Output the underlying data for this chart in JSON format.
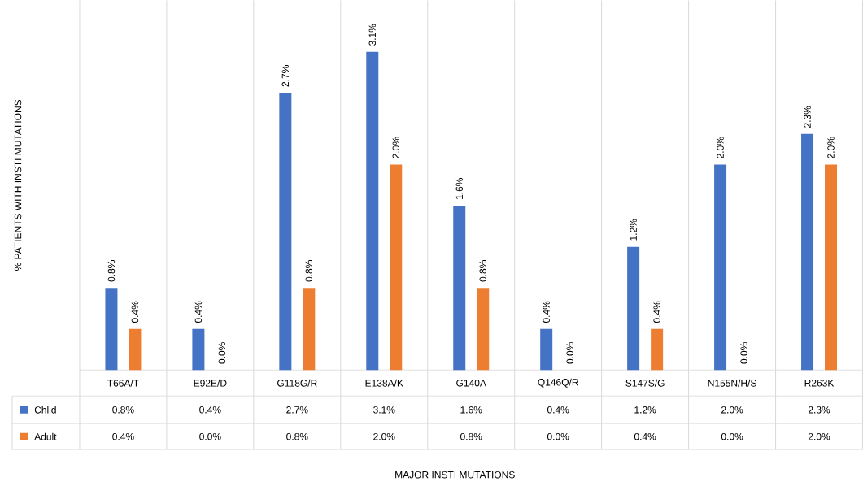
{
  "chart_data": {
    "type": "bar",
    "annotations": [
      "MAJOR INSTI MUTATIONS",
      "% PATIENTS WITH INSTI MUTATIONS"
    ],
    "categories": [
      "T66A/T",
      "E92E/D",
      "G118G/R",
      "E138A/K",
      "G140A",
      "Q146Q/R",
      "S147S/G",
      "N155N/H/S",
      "R263K"
    ],
    "ylim": [
      0,
      3.6
    ],
    "series": [
      {
        "name": "Chlid",
        "color": "#4472c4",
        "values": [
          0.8,
          0.4,
          2.7,
          3.1,
          1.6,
          0.4,
          1.2,
          2.0,
          2.3
        ],
        "value_labels": [
          "0.8%",
          "0.4%",
          "2.7%",
          "3.1%",
          "1.6%",
          "0.4%",
          "1.2%",
          "2.0%",
          "2.3%"
        ]
      },
      {
        "name": "Adult",
        "color": "#ed7d31",
        "values": [
          0.4,
          0.0,
          0.8,
          2.0,
          0.8,
          0.0,
          0.4,
          0.0,
          2.0
        ],
        "value_labels": [
          "0.4%",
          "0.0%",
          "0.8%",
          "2.0%",
          "0.8%",
          "0.0%",
          "0.4%",
          "0.0%",
          "2.0%"
        ]
      }
    ],
    "data_labels": true,
    "legend": "bottom left"
  }
}
